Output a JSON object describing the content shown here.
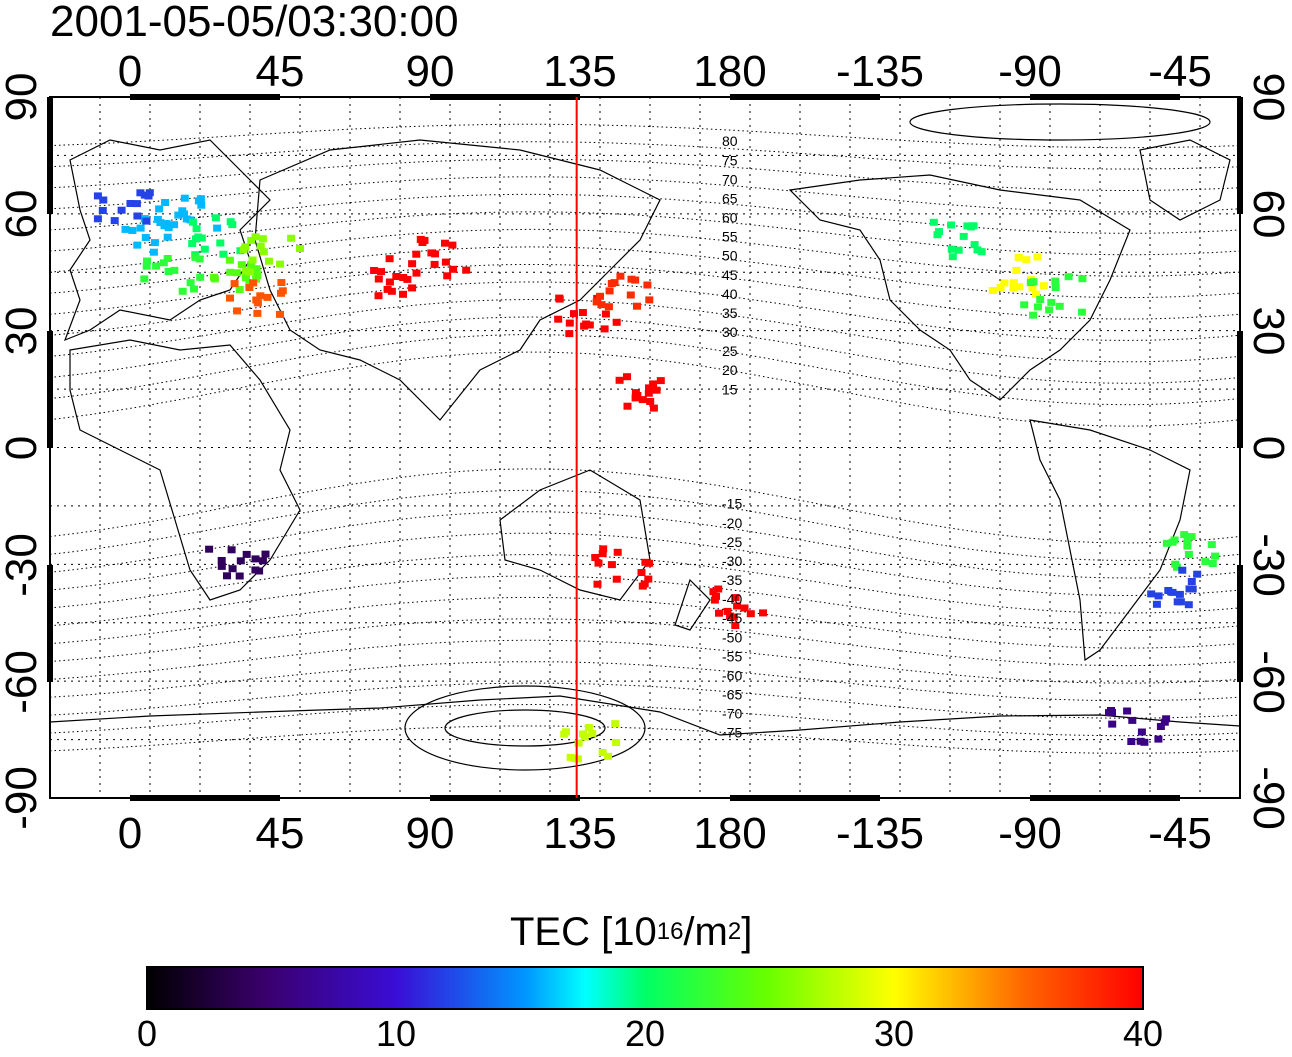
{
  "title": "2001-05-05/03:30:00",
  "map": {
    "top_lon_ticks": [
      "0",
      "45",
      "90",
      "135",
      "180",
      "-135",
      "-90",
      "-45"
    ],
    "bottom_lon_ticks": [
      "0",
      "45",
      "90",
      "135",
      "180",
      "-135",
      "-90",
      "-45"
    ],
    "left_lat_ticks": [
      "90",
      "60",
      "30",
      "0",
      "-30",
      "-60",
      "-90"
    ],
    "right_lat_ticks": [
      "90",
      "60",
      "30",
      "0",
      "-30",
      "-60",
      "-90"
    ],
    "magnetic_latitude_labels": [
      "80",
      "75",
      "70",
      "65",
      "60",
      "55",
      "50",
      "45",
      "40",
      "35",
      "30",
      "25",
      "20",
      "15",
      "-15",
      "-20",
      "-25",
      "-30",
      "-35",
      "-40",
      "-45",
      "-50",
      "-55",
      "-60",
      "-65",
      "-70",
      "-75"
    ],
    "marker_line": {
      "lon": 128,
      "color": "#ff0000"
    },
    "cells": [
      {
        "lon": 0,
        "lat": 55,
        "tec": 16
      },
      {
        "lon": 10,
        "lat": 60,
        "tec": 16
      },
      {
        "lon": 20,
        "lat": 55,
        "tec": 20
      },
      {
        "lon": 5,
        "lat": 45,
        "tec": 22
      },
      {
        "lon": 25,
        "lat": 45,
        "tec": 24
      },
      {
        "lon": 35,
        "lat": 50,
        "tec": 26
      },
      {
        "lon": 30,
        "lat": 40,
        "tec": 36
      },
      {
        "lon": -10,
        "lat": 62,
        "tec": 12
      },
      {
        "lon": 75,
        "lat": 45,
        "tec": 40
      },
      {
        "lon": 85,
        "lat": 50,
        "tec": 40
      },
      {
        "lon": 130,
        "lat": 35,
        "tec": 40
      },
      {
        "lon": 140,
        "lat": 40,
        "tec": 38
      },
      {
        "lon": 145,
        "lat": 15,
        "tec": 40
      },
      {
        "lon": 140,
        "lat": -30,
        "tec": 40
      },
      {
        "lon": 175,
        "lat": -40,
        "tec": 40
      },
      {
        "lon": 25,
        "lat": -30,
        "tec": 4
      },
      {
        "lon": -100,
        "lat": 45,
        "tec": 30
      },
      {
        "lon": -90,
        "lat": 40,
        "tec": 22
      },
      {
        "lon": -120,
        "lat": 55,
        "tec": 20
      },
      {
        "lon": -50,
        "lat": -25,
        "tec": 22
      },
      {
        "lon": -55,
        "lat": -35,
        "tec": 12
      },
      {
        "lon": -65,
        "lat": -70,
        "tec": 6
      },
      {
        "lon": 130,
        "lat": -75,
        "tec": 28
      }
    ]
  },
  "colorbar": {
    "label_prefix": "TEC  [10",
    "label_exp": "16",
    "label_mid": "/m",
    "label_exp2": "2",
    "label_suffix": "]",
    "min": 0,
    "max": 40,
    "ticks": [
      "0",
      "10",
      "20",
      "30",
      "40"
    ]
  }
}
